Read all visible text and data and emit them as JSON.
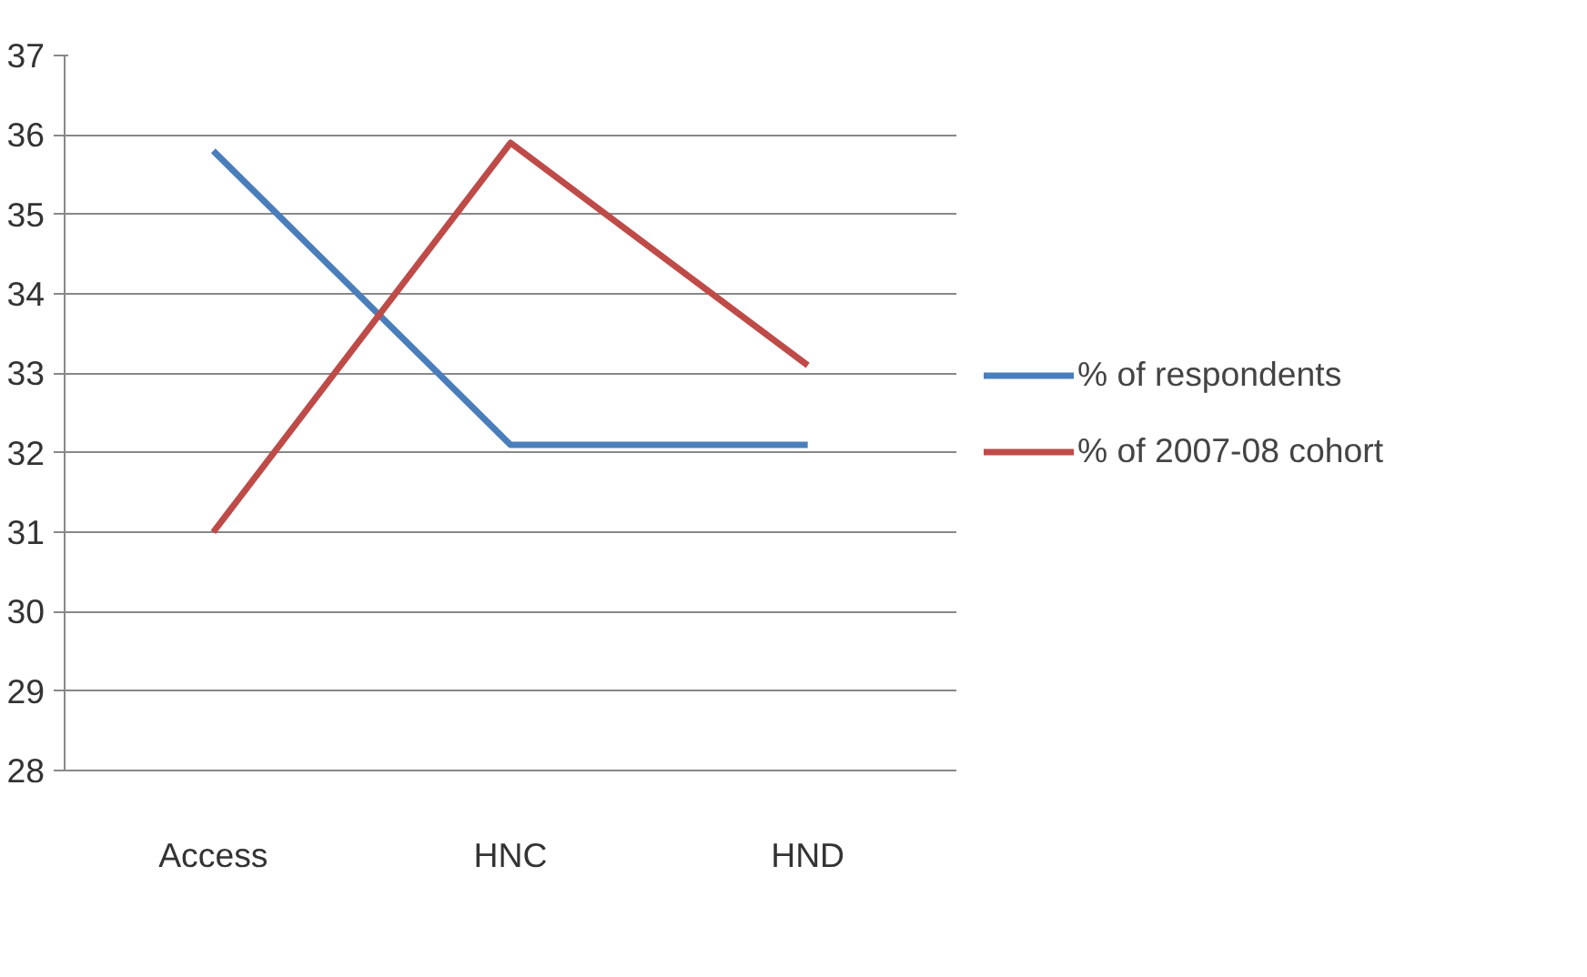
{
  "chart_data": {
    "type": "line",
    "categories": [
      "Access",
      "HNC",
      "HND"
    ],
    "series": [
      {
        "name": "% of respondents",
        "color": "#4a7ebb",
        "values": [
          35.8,
          32.1,
          32.1
        ]
      },
      {
        "name": "% of 2007-08 cohort",
        "color": "#be4b48",
        "values": [
          31.0,
          35.9,
          33.1
        ]
      }
    ],
    "ylim": [
      28,
      37
    ],
    "yticks": [
      28,
      29,
      30,
      31,
      32,
      33,
      34,
      35,
      36,
      37
    ],
    "grid": "y",
    "legend": "right",
    "marker": "none",
    "line_style": "solid"
  }
}
